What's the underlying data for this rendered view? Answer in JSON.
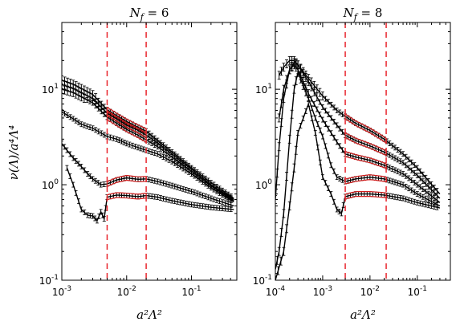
{
  "chart_data": [
    {
      "type": "line",
      "title": "N_f = 6",
      "title_parts": {
        "main": "N",
        "sub": "f",
        "rest": " = 6"
      },
      "xlabel": "a²Λ²",
      "ylabel": "ν(Λ)/a⁴Λ⁴",
      "xscale": "log",
      "yscale": "log",
      "xlim": [
        0.001,
        0.5
      ],
      "ylim": [
        0.1,
        50
      ],
      "x_tick_labels": [
        {
          "value": 0.001,
          "base": "10",
          "exp": "-3"
        },
        {
          "value": 0.01,
          "base": "10",
          "exp": "-2"
        },
        {
          "value": 0.1,
          "base": "10",
          "exp": "-1"
        }
      ],
      "y_tick_labels": [
        {
          "value": 0.1,
          "base": "10",
          "exp": "-1"
        },
        {
          "value": 1,
          "base": "10",
          "exp": "0"
        },
        {
          "value": 10,
          "base": "10",
          "exp": "1"
        }
      ],
      "vlines": [
        0.005,
        0.02
      ],
      "fit_range": [
        0.005,
        0.02
      ],
      "series": [
        {
          "x": [
            0.001,
            0.0015,
            0.002,
            0.003,
            0.005,
            0.007,
            0.01,
            0.015,
            0.02,
            0.03,
            0.05,
            0.1,
            0.2,
            0.45
          ],
          "y": [
            12.5,
            11.3,
            10.2,
            8.8,
            6.1,
            5.3,
            4.6,
            4.0,
            3.65,
            2.9,
            2.2,
            1.5,
            1.05,
            0.72
          ],
          "fit": true
        },
        {
          "x": [
            0.001,
            0.0015,
            0.002,
            0.003,
            0.005,
            0.007,
            0.01,
            0.015,
            0.02,
            0.03,
            0.05,
            0.1,
            0.2,
            0.45
          ],
          "y": [
            11.2,
            10.2,
            9.2,
            8.0,
            5.6,
            4.9,
            4.2,
            3.7,
            3.3,
            2.75,
            2.1,
            1.45,
            1.0,
            0.7
          ],
          "fit": true
        },
        {
          "x": [
            0.001,
            0.0015,
            0.002,
            0.003,
            0.005,
            0.007,
            0.01,
            0.015,
            0.02,
            0.03,
            0.05,
            0.1,
            0.2,
            0.45
          ],
          "y": [
            10.0,
            9.2,
            8.3,
            7.2,
            5.1,
            4.4,
            3.8,
            3.3,
            2.95,
            2.5,
            1.95,
            1.38,
            0.97,
            0.68
          ],
          "fit": true
        },
        {
          "x": [
            0.001,
            0.0015,
            0.002,
            0.003,
            0.005,
            0.007,
            0.01,
            0.015,
            0.02,
            0.03,
            0.05,
            0.1,
            0.2,
            0.45
          ],
          "y": [
            5.8,
            4.9,
            4.3,
            3.9,
            3.2,
            3.0,
            2.7,
            2.45,
            2.3,
            2.1,
            1.75,
            1.3,
            0.93,
            0.66
          ],
          "fit": false
        },
        {
          "x": [
            0.001,
            0.0012,
            0.0015,
            0.002,
            0.0025,
            0.003,
            0.004,
            0.005,
            0.007,
            0.01,
            0.015,
            0.02,
            0.03,
            0.05,
            0.1,
            0.2,
            0.45
          ],
          "y": [
            2.7,
            2.3,
            1.9,
            1.55,
            1.3,
            1.15,
            1.0,
            1.02,
            1.12,
            1.18,
            1.14,
            1.15,
            1.08,
            0.98,
            0.85,
            0.72,
            0.6
          ],
          "fit": true
        },
        {
          "x": [
            0.0012,
            0.0015,
            0.002,
            0.0025,
            0.003,
            0.0035,
            0.004,
            0.0045,
            0.005,
            0.007,
            0.01,
            0.015,
            0.02,
            0.03,
            0.05,
            0.1,
            0.2,
            0.45
          ],
          "y": [
            1.5,
            1.0,
            0.55,
            0.48,
            0.47,
            0.42,
            0.52,
            0.44,
            0.74,
            0.78,
            0.77,
            0.75,
            0.77,
            0.74,
            0.68,
            0.62,
            0.58,
            0.55
          ],
          "fit": true
        }
      ]
    },
    {
      "type": "line",
      "title": "N_f = 8",
      "title_parts": {
        "main": "N",
        "sub": "f",
        "rest": " = 8"
      },
      "xlabel": "a²Λ²",
      "ylabel": "",
      "xscale": "log",
      "yscale": "log",
      "xlim": [
        0.0001,
        0.5
      ],
      "ylim": [
        0.1,
        50
      ],
      "x_tick_labels": [
        {
          "value": 0.0001,
          "base": "10",
          "exp": "-4"
        },
        {
          "value": 0.001,
          "base": "10",
          "exp": "-3"
        },
        {
          "value": 0.01,
          "base": "10",
          "exp": "-2"
        },
        {
          "value": 0.1,
          "base": "10",
          "exp": "-1"
        }
      ],
      "y_tick_labels": [
        {
          "value": 0.1,
          "base": "10",
          "exp": "-1"
        },
        {
          "value": 1,
          "base": "10",
          "exp": "0"
        },
        {
          "value": 10,
          "base": "10",
          "exp": "1"
        }
      ],
      "vlines": [
        0.003,
        0.022
      ],
      "fit_range": [
        0.003,
        0.022
      ],
      "series": [
        {
          "x": [
            0.00012,
            0.00015,
            0.0002,
            0.00025,
            0.0003,
            0.0005,
            0.001,
            0.002,
            0.003,
            0.005,
            0.01,
            0.02,
            0.05,
            0.1,
            0.3
          ],
          "y": [
            14,
            17,
            20,
            20,
            18,
            13,
            8.5,
            6.0,
            5.2,
            4.4,
            3.7,
            3.0,
            2.1,
            1.5,
            0.8
          ],
          "fit": true
        },
        {
          "x": [
            0.00012,
            0.00015,
            0.0002,
            0.00025,
            0.0003,
            0.0005,
            0.001,
            0.002,
            0.003,
            0.005,
            0.01,
            0.02,
            0.05,
            0.1,
            0.3
          ],
          "y": [
            5,
            10,
            16,
            19,
            18,
            12,
            6.5,
            4.2,
            3.3,
            2.9,
            2.55,
            2.2,
            1.7,
            1.25,
            0.72
          ],
          "fit": true
        },
        {
          "x": [
            0.0001,
            0.00012,
            0.00015,
            0.0002,
            0.00025,
            0.0003,
            0.0005,
            0.001,
            0.002,
            0.003,
            0.005,
            0.01,
            0.02,
            0.05,
            0.1,
            0.3
          ],
          "y": [
            0.7,
            2.5,
            8,
            16,
            18,
            16,
            9,
            4.8,
            2.8,
            2.1,
            1.95,
            1.8,
            1.6,
            1.3,
            1.0,
            0.65
          ],
          "fit": true
        },
        {
          "x": [
            0.0001,
            0.00012,
            0.00015,
            0.0002,
            0.00025,
            0.0003,
            0.0005,
            0.0007,
            0.001,
            0.0015,
            0.002,
            0.003,
            0.005,
            0.01,
            0.02,
            0.05,
            0.1,
            0.3
          ],
          "y": [
            0.13,
            0.2,
            0.5,
            3,
            10,
            15,
            8,
            5,
            3.2,
            1.6,
            1.2,
            1.08,
            1.15,
            1.2,
            1.15,
            1.0,
            0.8,
            0.6
          ],
          "fit": true
        },
        {
          "x": [
            0.0001,
            0.00015,
            0.0002,
            0.00025,
            0.0003,
            0.0005,
            0.0007,
            0.001,
            0.0015,
            0.002,
            0.0025,
            0.003,
            0.005,
            0.01,
            0.02,
            0.05,
            0.1,
            0.3
          ],
          "y": [
            0.1,
            0.2,
            0.6,
            1.5,
            3.5,
            7,
            3.5,
            1.2,
            0.8,
            0.55,
            0.5,
            0.75,
            0.8,
            0.8,
            0.78,
            0.72,
            0.65,
            0.57
          ],
          "fit": true
        }
      ]
    }
  ]
}
